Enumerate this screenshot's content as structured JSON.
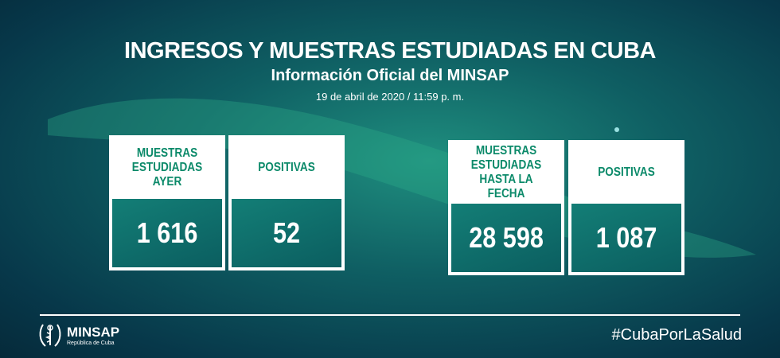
{
  "header": {
    "title": "INGRESOS Y MUESTRAS ESTUDIADAS EN CUBA",
    "subtitle": "Información Oficial del MINSAP",
    "date": "19 de abril de 2020 / 11:59 p. m."
  },
  "cards": [
    {
      "label": "MUESTRAS\nESTUDIADAS\nAYER",
      "value": "1 616"
    },
    {
      "label": "POSITIVAS",
      "value": "52"
    },
    {
      "label": "MUESTRAS\nESTUDIADAS\nHASTA LA FECHA",
      "value": "28 598"
    },
    {
      "label": "POSITIVAS",
      "value": "1 087"
    }
  ],
  "footer": {
    "logo_name": "MINSAP",
    "logo_sub": "República de Cuba",
    "hashtag": "#CubaPorLaSalud"
  },
  "colors": {
    "accent": "#0c8a6a",
    "background": "#0f5f63"
  }
}
